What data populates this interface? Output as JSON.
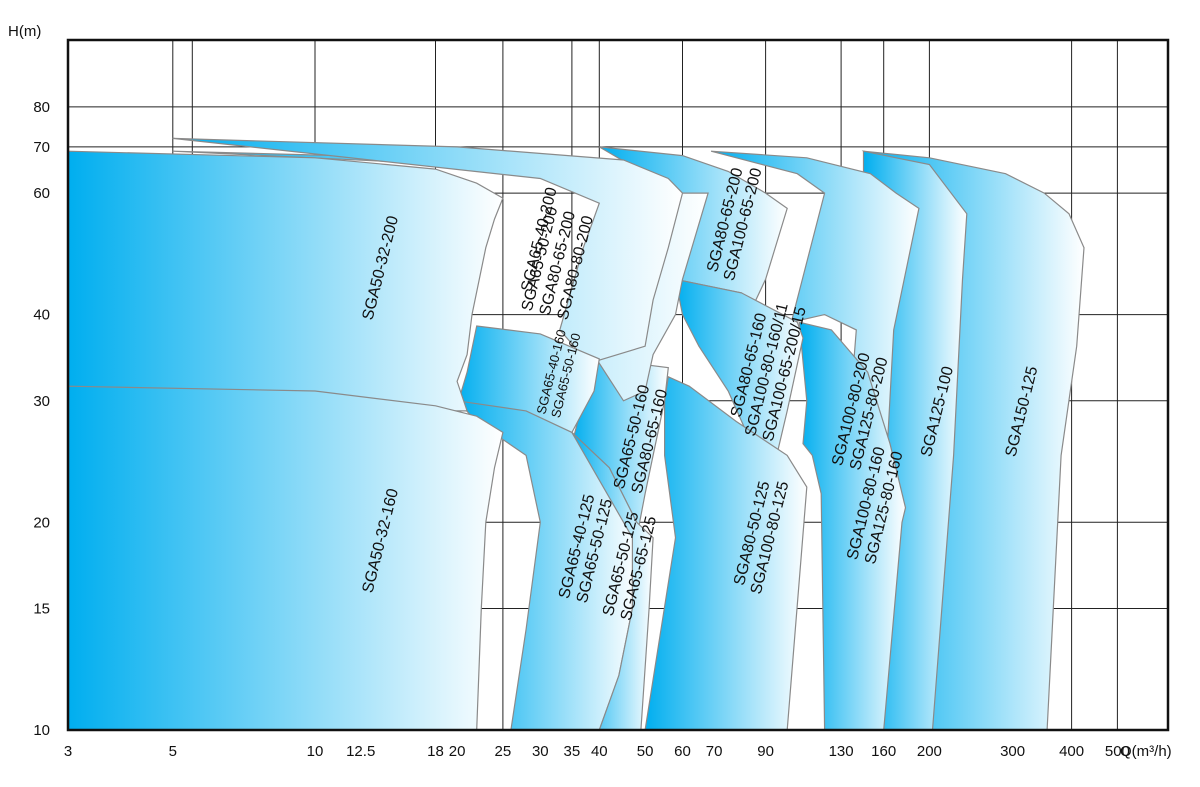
{
  "chart_data": {
    "type": "area",
    "xlabel": "Q(m³/h)",
    "ylabel": "H(m)",
    "x_scale": "log",
    "y_scale": "log",
    "xlim": [
      3,
      640
    ],
    "ylim": [
      10,
      100
    ],
    "grid": true,
    "colors": {
      "region_edge": "#00aeef",
      "region_fade": "#ffffff",
      "outline": "#8a8a8a",
      "grid": "#222222"
    },
    "x_ticks": [
      "3",
      "5",
      "10",
      "12.5",
      "18",
      "20",
      "25",
      "30",
      "35",
      "40",
      "50",
      "60",
      "70",
      "90",
      "130",
      "160",
      "200",
      "300",
      "400",
      "500"
    ],
    "x_grid": [
      5,
      5.5,
      10,
      18,
      25,
      35,
      40,
      60,
      90,
      130,
      160,
      200,
      400,
      500
    ],
    "y_ticks": [
      "10",
      "15",
      "20",
      "30",
      "40",
      "60",
      "70",
      "80"
    ],
    "y_grid": [
      15,
      20,
      30,
      40,
      60,
      70,
      80
    ],
    "regions": [
      {
        "labels": [
          "SGA150-125"
        ],
        "polygon": [
          [
            145,
            69
          ],
          [
            200,
            67.5
          ],
          [
            290,
            64
          ],
          [
            350,
            60
          ],
          [
            395,
            56
          ],
          [
            425,
            50
          ],
          [
            410,
            36
          ],
          [
            380,
            25
          ],
          [
            355,
            10
          ],
          [
            200,
            10
          ],
          [
            215,
            60
          ],
          [
            165,
            64
          ]
        ]
      },
      {
        "labels": [
          "SGA125-100"
        ],
        "polygon": [
          [
            145,
            69
          ],
          [
            200,
            66
          ],
          [
            240,
            56
          ],
          [
            235,
            45
          ],
          [
            225,
            25
          ],
          [
            203,
            10
          ],
          [
            145,
            10
          ]
        ]
      },
      {
        "labels": [
          "SGA100-80-200",
          "SGA125-80-200"
        ],
        "polygon": [
          [
            69,
            69
          ],
          [
            110,
            67.5
          ],
          [
            150,
            64
          ],
          [
            170,
            60
          ],
          [
            190,
            57
          ],
          [
            168,
            38
          ],
          [
            163,
            26
          ],
          [
            148,
            10
          ],
          [
            120,
            10
          ],
          [
            140,
            38
          ],
          [
            120,
            40
          ],
          [
            102,
            39
          ],
          [
            120,
            60
          ],
          [
            105,
            64
          ]
        ]
      },
      {
        "labels": [
          "SGA100-80-160",
          "SGA125-80-160"
        ],
        "polygon": [
          [
            106,
            39
          ],
          [
            124,
            38
          ],
          [
            148,
            33
          ],
          [
            165,
            26
          ],
          [
            178,
            21
          ],
          [
            175,
            20
          ],
          [
            160,
            10
          ],
          [
            148,
            10
          ],
          [
            120,
            10
          ],
          [
            118,
            22
          ],
          [
            113,
            25
          ],
          [
            108,
            26
          ],
          [
            110,
            30
          ]
        ]
      },
      {
        "labels": [
          "SGA80-65-200",
          "SGA100-65-200"
        ],
        "polygon": [
          [
            40,
            70
          ],
          [
            60,
            68
          ],
          [
            75,
            64.5
          ],
          [
            90,
            60
          ],
          [
            100,
            57
          ],
          [
            90,
            45
          ],
          [
            83,
            40
          ],
          [
            80,
            43
          ],
          [
            58,
            45
          ],
          [
            60,
            60
          ],
          [
            50,
            64
          ]
        ]
      },
      {
        "labels": [
          "SGA80-65-160",
          "SGA100-80-160/11",
          "SGA100-65-200/15"
        ],
        "polygon": [
          [
            58,
            45
          ],
          [
            80,
            43
          ],
          [
            105,
            39
          ],
          [
            108,
            37
          ],
          [
            100,
            29
          ],
          [
            95,
            25
          ],
          [
            89,
            23
          ],
          [
            82,
            27
          ],
          [
            75,
            31
          ],
          [
            65,
            36
          ],
          [
            60,
            40
          ]
        ]
      },
      {
        "labels": [
          "SGA80-50-125",
          "SGA100-80-125"
        ],
        "polygon": [
          [
            56,
            32.5
          ],
          [
            62,
            31.5
          ],
          [
            78,
            28
          ],
          [
            100,
            25
          ],
          [
            110,
            22.5
          ],
          [
            100,
            10
          ],
          [
            80,
            10
          ],
          [
            50,
            10
          ],
          [
            58,
            19
          ],
          [
            55,
            25
          ],
          [
            55,
            30
          ]
        ]
      },
      {
        "labels": [
          "SGA65-50-160",
          "SGA80-65-160"
        ],
        "polygon": [
          [
            40,
            34.5
          ],
          [
            56,
            33.5
          ],
          [
            55,
            30
          ],
          [
            52,
            25
          ],
          [
            50,
            22
          ],
          [
            48,
            19
          ],
          [
            45,
            20
          ],
          [
            35,
            26
          ],
          [
            37,
            30
          ]
        ]
      },
      {
        "labels": [
          "SGA65-50-200",
          "SGA80-65-200",
          "SGA80-80-200"
        ],
        "polygon": [
          [
            5,
            69
          ],
          [
            25,
            67
          ],
          [
            40,
            63.5
          ],
          [
            60,
            60
          ],
          [
            68,
            60
          ],
          [
            60,
            45
          ],
          [
            58,
            40
          ],
          [
            52,
            35
          ],
          [
            50,
            31
          ],
          [
            45,
            30
          ],
          [
            40,
            34
          ],
          [
            38,
            36
          ],
          [
            35,
            40
          ],
          [
            38,
            50
          ],
          [
            50,
            64
          ]
        ]
      },
      {
        "labels": [
          "SGA65-40-200"
        ],
        "polygon": [
          [
            5,
            72
          ],
          [
            20,
            70
          ],
          [
            45,
            67
          ],
          [
            56,
            63
          ],
          [
            60,
            60
          ],
          [
            56,
            50
          ],
          [
            52,
            42
          ],
          [
            50,
            36
          ],
          [
            38,
            34
          ],
          [
            33,
            38
          ],
          [
            37,
            50
          ],
          [
            40,
            58
          ],
          [
            30,
            63
          ]
        ]
      },
      {
        "labels": [
          "SGA65-40-160",
          "SGA65-50-160"
        ],
        "polygon": [
          [
            22,
            38.5
          ],
          [
            30,
            37.5
          ],
          [
            40,
            34.5
          ],
          [
            39,
            31
          ],
          [
            35,
            27
          ],
          [
            30,
            28
          ],
          [
            20,
            29.5
          ],
          [
            21,
            33
          ]
        ]
      },
      {
        "labels": [
          "SGA65-40-125",
          "SGA65-50-125"
        ],
        "polygon": [
          [
            20,
            30
          ],
          [
            28,
            29
          ],
          [
            35,
            27
          ],
          [
            42,
            24
          ],
          [
            48,
            20
          ],
          [
            48,
            19
          ],
          [
            47,
            15
          ],
          [
            44,
            12
          ],
          [
            40,
            10
          ],
          [
            26,
            10
          ],
          [
            28,
            14
          ],
          [
            30,
            20
          ],
          [
            28,
            25
          ],
          [
            22,
            28
          ]
        ]
      },
      {
        "labels": [
          "SGA65-50-125",
          "SGA65-65-125"
        ],
        "polygon": [
          [
            35,
            27
          ],
          [
            42,
            24
          ],
          [
            48,
            20
          ],
          [
            52,
            19
          ],
          [
            51,
            15
          ],
          [
            49,
            10
          ],
          [
            40,
            10
          ],
          [
            44,
            12
          ],
          [
            47,
            15
          ],
          [
            47,
            19
          ]
        ]
      },
      {
        "labels": [
          "SGA50-32-200"
        ],
        "polygon": [
          [
            3,
            69
          ],
          [
            10,
            67.5
          ],
          [
            18,
            65
          ],
          [
            22,
            62
          ],
          [
            25,
            59
          ],
          [
            24,
            55
          ],
          [
            23,
            50
          ],
          [
            21.5,
            40
          ],
          [
            21,
            35
          ],
          [
            20,
            32
          ],
          [
            21,
            29
          ],
          [
            3,
            29
          ]
        ]
      },
      {
        "labels": [
          "SGA50-32-160"
        ],
        "polygon": [
          [
            3,
            31.5
          ],
          [
            10,
            31
          ],
          [
            18,
            29.5
          ],
          [
            22,
            28.5
          ],
          [
            25,
            27
          ],
          [
            24,
            24
          ],
          [
            23,
            20
          ],
          [
            22.5,
            15
          ],
          [
            22,
            10
          ],
          [
            3,
            10
          ]
        ]
      }
    ]
  }
}
